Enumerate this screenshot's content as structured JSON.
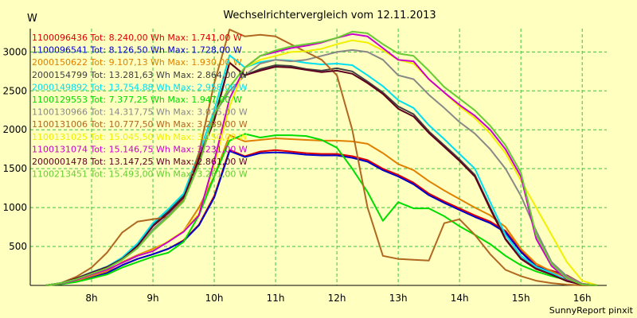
{
  "chart_data": {
    "type": "line",
    "title": "Wechselrichtervergleich vom 12.11.2013",
    "ylabel": "W",
    "xlabel": "",
    "credit": "SunnyReport pinxit",
    "ylim": [
      0,
      3300
    ],
    "xlim": [
      7,
      16.4
    ],
    "x_ticks": [
      8,
      9,
      10,
      11,
      12,
      13,
      14,
      15,
      16
    ],
    "x_tick_labels": [
      "8h",
      "9h",
      "10h",
      "11h",
      "12h",
      "13h",
      "14h",
      "15h",
      "16h"
    ],
    "y_ticks": [
      500,
      1000,
      1500,
      2000,
      2500,
      3000
    ],
    "y_tick_labels": [
      "500",
      "1000",
      "1500",
      "2000",
      "2500",
      "3000"
    ],
    "grid": true,
    "legend_position": "top-left",
    "x": [
      7.25,
      7.5,
      7.75,
      8.0,
      8.25,
      8.5,
      8.75,
      9.0,
      9.25,
      9.5,
      9.75,
      10.0,
      10.25,
      10.5,
      10.75,
      11.0,
      11.25,
      11.5,
      11.75,
      12.0,
      12.25,
      12.5,
      12.75,
      13.0,
      13.25,
      13.5,
      13.75,
      14.0,
      14.25,
      14.5,
      14.75,
      15.0,
      15.25,
      15.5,
      15.75,
      16.0,
      16.25
    ],
    "series": [
      {
        "name": "1100096436 Tot: 8.240,00 Wh Max: 1.741,00 W",
        "color": "#dd0000",
        "values": [
          0,
          20,
          60,
          110,
          160,
          260,
          340,
          400,
          470,
          580,
          780,
          1150,
          1741,
          1660,
          1720,
          1740,
          1720,
          1700,
          1690,
          1690,
          1660,
          1610,
          1500,
          1420,
          1320,
          1180,
          1080,
          990,
          900,
          820,
          700,
          450,
          250,
          190,
          130,
          20,
          0
        ]
      },
      {
        "name": "1100096541 Tot: 8.126,50 Wh Max: 1.728,00 W",
        "color": "#0000cc",
        "values": [
          0,
          20,
          60,
          110,
          160,
          260,
          340,
          400,
          470,
          570,
          770,
          1130,
          1728,
          1650,
          1700,
          1710,
          1700,
          1680,
          1670,
          1670,
          1640,
          1590,
          1480,
          1400,
          1300,
          1160,
          1060,
          970,
          880,
          800,
          680,
          430,
          240,
          180,
          120,
          20,
          0
        ]
      },
      {
        "name": "2000150622 Tot: 9.107,13 Wh Max: 1.930,00 W",
        "color": "#e08000",
        "values": [
          0,
          20,
          60,
          120,
          180,
          300,
          390,
          470,
          560,
          700,
          1000,
          1400,
          1930,
          1850,
          1870,
          1890,
          1880,
          1870,
          1860,
          1860,
          1850,
          1820,
          1700,
          1560,
          1480,
          1340,
          1220,
          1110,
          1000,
          900,
          750,
          470,
          280,
          180,
          100,
          20,
          0
        ]
      },
      {
        "name": "2000154799 Tot: 13.281,63 Wh Max: 2.864,00 W",
        "color": "#404040",
        "values": [
          0,
          30,
          90,
          170,
          240,
          350,
          520,
          780,
          950,
          1150,
          1650,
          2150,
          2864,
          2700,
          2780,
          2830,
          2820,
          2780,
          2760,
          2790,
          2750,
          2620,
          2480,
          2300,
          2200,
          1980,
          1800,
          1620,
          1420,
          1000,
          600,
          350,
          220,
          150,
          60,
          10,
          0
        ]
      },
      {
        "name": "2000149892 Tot: 13.754,88 Wh Max: 2.958,00 W",
        "color": "#00e0f0",
        "values": [
          0,
          30,
          90,
          170,
          240,
          360,
          540,
          800,
          980,
          1180,
          1700,
          2250,
          2958,
          2800,
          2870,
          2900,
          2890,
          2860,
          2840,
          2850,
          2830,
          2700,
          2560,
          2380,
          2280,
          2060,
          1880,
          1690,
          1500,
          1070,
          650,
          380,
          240,
          160,
          70,
          10,
          0
        ]
      },
      {
        "name": "1100129553 Tot: 7.377,25 Wh Max: 1.947,00 W",
        "color": "#00dd00",
        "values": [
          0,
          15,
          45,
          90,
          140,
          230,
          300,
          370,
          420,
          560,
          900,
          1400,
          1860,
          1947,
          1900,
          1930,
          1930,
          1920,
          1870,
          1770,
          1500,
          1200,
          830,
          1070,
          990,
          990,
          890,
          760,
          650,
          530,
          380,
          260,
          180,
          120,
          70,
          10,
          0
        ]
      },
      {
        "name": "1100130966 Tot: 14.317,75 Wh Max: 3.025,00 W",
        "color": "#888888",
        "values": [
          0,
          30,
          80,
          150,
          220,
          330,
          480,
          720,
          900,
          1100,
          1600,
          2200,
          2500,
          2700,
          2850,
          2900,
          2880,
          2900,
          2950,
          3000,
          3025,
          3000,
          2900,
          2700,
          2650,
          2450,
          2280,
          2100,
          1950,
          1750,
          1500,
          1150,
          700,
          300,
          120,
          20,
          0
        ]
      },
      {
        "name": "1100131006 Tot: 10.777,50 Wh Max: 3.289,00 W",
        "color": "#b06820",
        "values": [
          0,
          30,
          110,
          230,
          420,
          680,
          820,
          850,
          880,
          1100,
          1700,
          2600,
          3289,
          3200,
          3220,
          3200,
          3100,
          3000,
          2900,
          2700,
          2000,
          1000,
          380,
          340,
          330,
          320,
          800,
          850,
          650,
          400,
          200,
          120,
          60,
          30,
          10,
          0,
          0
        ]
      },
      {
        "name": "1100131025 Tot: 15.045,50 Wh Max: 3.150,00 W",
        "color": "#f0f000",
        "values": [
          0,
          25,
          70,
          140,
          200,
          290,
          380,
          450,
          570,
          700,
          920,
          1550,
          2300,
          2800,
          2900,
          2950,
          3000,
          3010,
          3040,
          3100,
          3150,
          3120,
          3020,
          2900,
          2850,
          2650,
          2480,
          2300,
          2150,
          1950,
          1700,
          1350,
          1000,
          650,
          300,
          60,
          0
        ]
      },
      {
        "name": "1100131074 Tot: 15.146,75 Wh Max: 3.231,00 W",
        "color": "#cc00cc",
        "values": [
          0,
          25,
          70,
          140,
          200,
          290,
          380,
          440,
          560,
          690,
          900,
          1600,
          2400,
          2800,
          2950,
          3000,
          3050,
          3080,
          3120,
          3180,
          3231,
          3200,
          3050,
          2900,
          2880,
          2650,
          2480,
          2320,
          2180,
          2000,
          1750,
          1400,
          600,
          250,
          80,
          10,
          0
        ]
      },
      {
        "name": "2000001478 Tot: 13.147,25 Wh Max: 2.861,00 W",
        "color": "#600020",
        "values": [
          0,
          30,
          90,
          165,
          235,
          340,
          510,
          760,
          930,
          1130,
          1620,
          2120,
          2861,
          2700,
          2760,
          2810,
          2800,
          2770,
          2740,
          2760,
          2720,
          2600,
          2460,
          2270,
          2170,
          1960,
          1780,
          1600,
          1400,
          980,
          590,
          340,
          210,
          140,
          55,
          10,
          0
        ]
      },
      {
        "name": "1100213451 Tot: 15.493,00 Wh Max: 3.261,00 W",
        "color": "#66cc33",
        "values": [
          0,
          30,
          80,
          150,
          220,
          330,
          480,
          700,
          880,
          1080,
          1550,
          2200,
          2550,
          2800,
          2950,
          3020,
          3070,
          3100,
          3130,
          3180,
          3261,
          3240,
          3100,
          2980,
          2950,
          2760,
          2550,
          2400,
          2250,
          2050,
          1800,
          1450,
          650,
          280,
          90,
          10,
          0
        ]
      }
    ]
  }
}
